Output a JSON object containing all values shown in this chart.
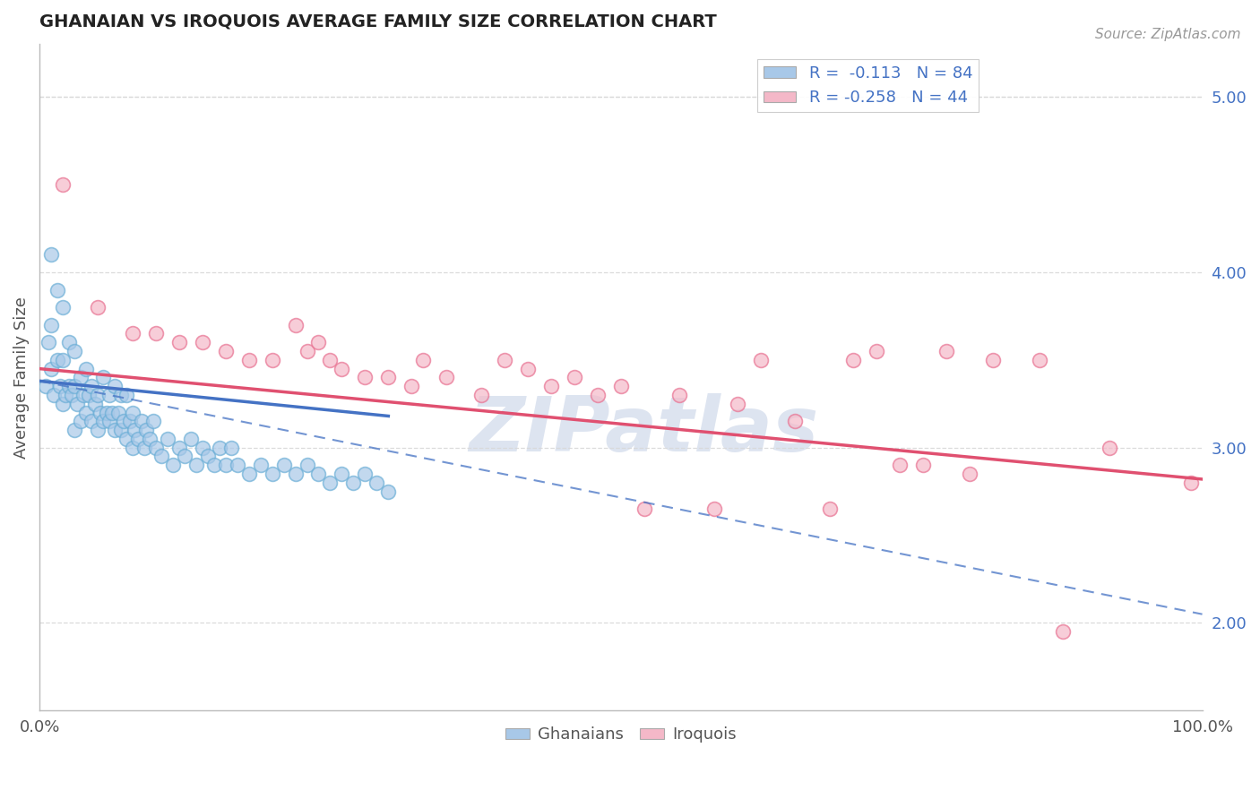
{
  "title": "GHANAIAN VS IROQUOIS AVERAGE FAMILY SIZE CORRELATION CHART",
  "source_text": "Source: ZipAtlas.com",
  "ylabel": "Average Family Size",
  "xmin": 0.0,
  "xmax": 100.0,
  "ymin": 1.5,
  "ymax": 5.3,
  "right_yticks": [
    2.0,
    3.0,
    4.0,
    5.0
  ],
  "ghanaian_color_fill": "#a8c8e8",
  "ghanaian_color_edge": "#6aaed6",
  "iroquois_color_fill": "#f4b8c8",
  "iroquois_color_edge": "#e87090",
  "ghanaian_line_color": "#4472c4",
  "iroquois_line_color": "#e05070",
  "dashed_line_color": "#8888cc",
  "grid_color": "#d8d8d8",
  "watermark_text": "ZIPatlas",
  "legend1_label": "R =  -0.113   N = 84",
  "legend2_label": "R = -0.258   N = 44",
  "legend1_color": "#a8c8e8",
  "legend2_color": "#f4b8c8",
  "bottom_label1": "Ghanaians",
  "bottom_label2": "Iroquois",
  "ghanaian_x": [
    0.5,
    0.8,
    1.0,
    1.0,
    1.0,
    1.2,
    1.5,
    1.5,
    1.8,
    2.0,
    2.0,
    2.0,
    2.2,
    2.5,
    2.5,
    2.8,
    3.0,
    3.0,
    3.0,
    3.2,
    3.5,
    3.5,
    3.8,
    4.0,
    4.0,
    4.2,
    4.5,
    4.5,
    4.8,
    5.0,
    5.0,
    5.2,
    5.5,
    5.5,
    5.8,
    6.0,
    6.0,
    6.2,
    6.5,
    6.5,
    6.8,
    7.0,
    7.0,
    7.2,
    7.5,
    7.5,
    7.8,
    8.0,
    8.0,
    8.2,
    8.5,
    8.8,
    9.0,
    9.2,
    9.5,
    9.8,
    10.0,
    10.5,
    11.0,
    11.5,
    12.0,
    12.5,
    13.0,
    13.5,
    14.0,
    14.5,
    15.0,
    15.5,
    16.0,
    16.5,
    17.0,
    18.0,
    19.0,
    20.0,
    21.0,
    22.0,
    23.0,
    24.0,
    25.0,
    26.0,
    27.0,
    28.0,
    29.0,
    30.0
  ],
  "ghanaian_y": [
    3.35,
    3.6,
    3.45,
    3.7,
    4.1,
    3.3,
    3.5,
    3.9,
    3.35,
    3.25,
    3.5,
    3.8,
    3.3,
    3.35,
    3.6,
    3.3,
    3.1,
    3.35,
    3.55,
    3.25,
    3.15,
    3.4,
    3.3,
    3.2,
    3.45,
    3.3,
    3.15,
    3.35,
    3.25,
    3.1,
    3.3,
    3.2,
    3.15,
    3.4,
    3.2,
    3.15,
    3.3,
    3.2,
    3.1,
    3.35,
    3.2,
    3.1,
    3.3,
    3.15,
    3.05,
    3.3,
    3.15,
    3.0,
    3.2,
    3.1,
    3.05,
    3.15,
    3.0,
    3.1,
    3.05,
    3.15,
    3.0,
    2.95,
    3.05,
    2.9,
    3.0,
    2.95,
    3.05,
    2.9,
    3.0,
    2.95,
    2.9,
    3.0,
    2.9,
    3.0,
    2.9,
    2.85,
    2.9,
    2.85,
    2.9,
    2.85,
    2.9,
    2.85,
    2.8,
    2.85,
    2.8,
    2.85,
    2.8,
    2.75
  ],
  "iroquois_x": [
    2.0,
    5.0,
    8.0,
    10.0,
    12.0,
    14.0,
    16.0,
    18.0,
    20.0,
    22.0,
    23.0,
    24.0,
    25.0,
    26.0,
    28.0,
    30.0,
    32.0,
    33.0,
    35.0,
    38.0,
    40.0,
    42.0,
    44.0,
    46.0,
    48.0,
    50.0,
    52.0,
    55.0,
    58.0,
    60.0,
    62.0,
    65.0,
    68.0,
    70.0,
    72.0,
    74.0,
    76.0,
    78.0,
    80.0,
    82.0,
    86.0,
    88.0,
    92.0,
    99.0
  ],
  "iroquois_y": [
    4.5,
    3.8,
    3.65,
    3.65,
    3.6,
    3.6,
    3.55,
    3.5,
    3.5,
    3.7,
    3.55,
    3.6,
    3.5,
    3.45,
    3.4,
    3.4,
    3.35,
    3.5,
    3.4,
    3.3,
    3.5,
    3.45,
    3.35,
    3.4,
    3.3,
    3.35,
    2.65,
    3.3,
    2.65,
    3.25,
    3.5,
    3.15,
    2.65,
    3.5,
    3.55,
    2.9,
    2.9,
    3.55,
    2.85,
    3.5,
    3.5,
    1.95,
    3.0,
    2.8
  ],
  "ghanaian_trend_start_x": 0.0,
  "ghanaian_trend_end_x": 30.0,
  "ghanaian_trend_start_y": 3.38,
  "ghanaian_trend_end_y": 3.18,
  "iroquois_trend_start_x": 0.0,
  "iroquois_trend_end_x": 100.0,
  "iroquois_trend_start_y": 3.45,
  "iroquois_trend_end_y": 2.82,
  "ghanaian_dashed_start_x": 0.0,
  "ghanaian_dashed_end_x": 100.0,
  "ghanaian_dashed_start_y": 3.38,
  "ghanaian_dashed_end_y": 2.05,
  "top_dashed_y": 5.0
}
